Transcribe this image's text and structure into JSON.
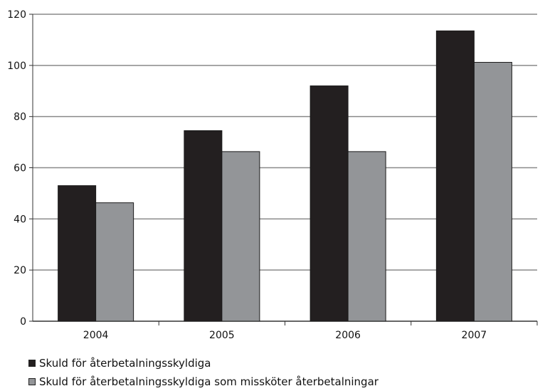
{
  "chart_data": {
    "type": "bar",
    "categories": [
      "2004",
      "2005",
      "2006",
      "2007"
    ],
    "series": [
      {
        "name": "Skuld för återbetalningsskyldiga",
        "values": [
          53,
          74.5,
          92,
          113.5
        ],
        "color": "#231f20"
      },
      {
        "name": "Skuld för återbetalningsskyldiga som missköter återbetalningar",
        "values": [
          46.3,
          66.3,
          66.3,
          101.2
        ],
        "color": "#939598"
      }
    ],
    "ylim": [
      0,
      120
    ],
    "yticks": [
      0,
      20,
      40,
      60,
      80,
      100,
      120
    ],
    "grid": true,
    "legend_position": "bottom-left"
  }
}
